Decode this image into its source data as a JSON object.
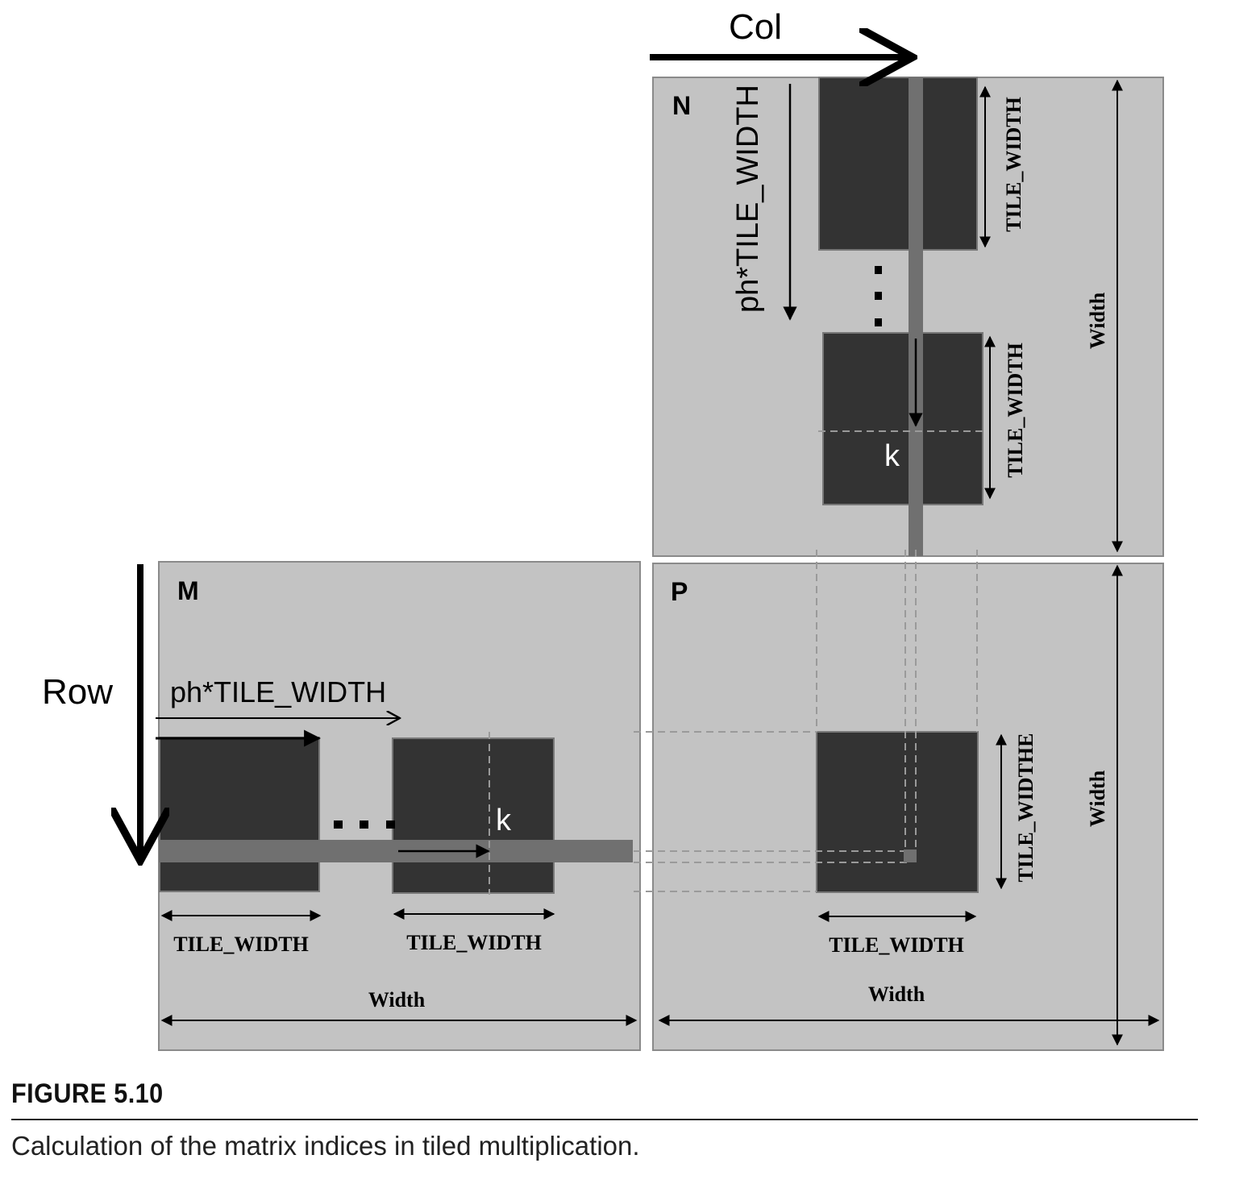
{
  "figure": {
    "label": "FIGURE 5.10",
    "caption": "Calculation of the matrix indices in tiled multiplication."
  },
  "labels": {
    "col": "Col",
    "row": "Row",
    "matrix_n": "N",
    "matrix_m": "M",
    "matrix_p": "P",
    "ph_tile_width": "ph*TILE_WIDTH",
    "tile_width": "TILE_WIDTH",
    "tile_widthe": "TILE_WIDTHE",
    "width": "Width",
    "k": "k",
    "ellipsis": "..."
  },
  "colors": {
    "matrix_fill": "#c3c3c3",
    "tile_fill": "#333333",
    "strip_fill": "#707070",
    "dash_stroke": "#9a9a9a"
  }
}
